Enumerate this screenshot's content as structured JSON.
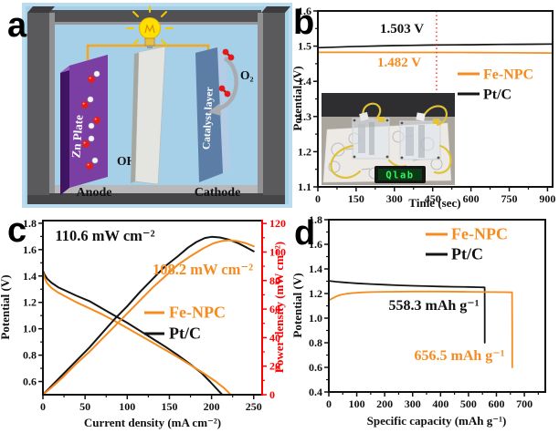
{
  "panels": {
    "a": {
      "letter": "a",
      "labels": {
        "zn_plate": "Zn Plate",
        "hydroxide": "OH⁻",
        "anode": "Anode",
        "catalyst_layer": "Catalyst layer",
        "cathode": "Cathode",
        "oxygen": "O₂"
      }
    },
    "b": {
      "letter": "b",
      "inset": {
        "display_text": "Qlab"
      }
    },
    "c": {
      "letter": "c"
    },
    "d": {
      "letter": "d"
    }
  },
  "colors": {
    "fe_npc_orange": "#F68B1F",
    "pt_c_black": "#141414",
    "right_axis_red": "#FF0000",
    "vline_red": "#FF2D2D",
    "panel_a_bg": "#A6D0E8",
    "zn_plate_purple": "#7B3FA4",
    "catalyst_blue": "#5C7EA6",
    "wire_yellow": "#F2A71F"
  },
  "chart_data": [
    {
      "id": "b",
      "type": "line",
      "xlabel": "Time (sec)",
      "ylabel": "Potential (V)",
      "xlim": [
        0,
        920
      ],
      "ylim": [
        1.1,
        1.6
      ],
      "xticks": {
        "values": [
          0,
          150,
          300,
          450,
          600,
          750,
          900
        ],
        "labels": [
          "0",
          "150",
          "300",
          "450",
          "600",
          "750",
          "900"
        ],
        "minor": [
          75,
          225,
          375,
          525,
          675,
          825
        ]
      },
      "yticks": {
        "values": [
          1.1,
          1.2,
          1.3,
          1.4,
          1.5,
          1.6
        ],
        "labels": [
          "1.1",
          "1.2",
          "1.3",
          "1.4",
          "1.5",
          "1.6"
        ],
        "minor": [
          1.15,
          1.25,
          1.35,
          1.45,
          1.55
        ]
      },
      "series": [
        {
          "name": "Pt/C",
          "color": "#141414",
          "width": 1.7,
          "points": [
            [
              0,
              1.4955
            ],
            [
              60,
              1.497
            ],
            [
              120,
              1.4985
            ],
            [
              180,
              1.4995
            ],
            [
              240,
              1.5005
            ],
            [
              300,
              1.5015
            ],
            [
              360,
              1.5022
            ],
            [
              420,
              1.5028
            ],
            [
              450,
              1.503
            ],
            [
              540,
              1.5036
            ],
            [
              600,
              1.504
            ],
            [
              660,
              1.5045
            ],
            [
              720,
              1.505
            ],
            [
              780,
              1.5052
            ],
            [
              840,
              1.5055
            ],
            [
              918,
              1.506
            ]
          ]
        },
        {
          "name": "Fe-NPC",
          "color": "#F68B1F",
          "width": 1.7,
          "points": [
            [
              0,
              1.4825
            ],
            [
              150,
              1.4824
            ],
            [
              300,
              1.4822
            ],
            [
              450,
              1.4821
            ],
            [
              600,
              1.4818
            ],
            [
              750,
              1.4813
            ],
            [
              900,
              1.4805
            ],
            [
              918,
              1.4802
            ]
          ]
        }
      ],
      "annotations": [
        {
          "text": "1.503 V",
          "color": "#111111"
        },
        {
          "text": "1.482 V",
          "color": "#F68B1F"
        }
      ],
      "vline": {
        "x": 465,
        "color": "#FF2D2D",
        "style": "dotted"
      },
      "legend": {
        "entries": [
          {
            "label": "Fe-NPC",
            "color": "#F68B1F"
          },
          {
            "label": "Pt/C",
            "color": "#141414"
          }
        ]
      }
    },
    {
      "id": "c",
      "type": "line",
      "xlabel": "Current density (mA cm⁻²)",
      "ylabel": "Potential (V)",
      "y2label": "Power density (mW cm⁻²)",
      "xlim": [
        0,
        260
      ],
      "ylim": [
        0.5,
        1.82
      ],
      "y2lim": [
        0,
        122
      ],
      "xticks": {
        "values": [
          0,
          50,
          100,
          150,
          200,
          250
        ],
        "labels": [
          "0",
          "50",
          "100",
          "150",
          "200",
          "250"
        ],
        "minor": [
          25,
          75,
          125,
          175,
          225
        ]
      },
      "yticks": {
        "values": [
          0.6,
          0.8,
          1.0,
          1.2,
          1.4,
          1.6,
          1.8
        ],
        "labels": [
          "0.6",
          "0.8",
          "1.0",
          "1.2",
          "1.4",
          "1.6",
          "1.8"
        ],
        "minor": [
          0.7,
          0.9,
          1.1,
          1.3,
          1.5,
          1.7
        ]
      },
      "y2ticks": {
        "values": [
          0,
          20,
          40,
          60,
          80,
          100,
          120
        ],
        "labels": [
          "0",
          "20",
          "40",
          "60",
          "80",
          "100",
          "120"
        ],
        "minor": [
          10,
          30,
          50,
          70,
          90,
          110
        ]
      },
      "series": [
        {
          "name": "Pt/C polarization",
          "color": "#141414",
          "width": 2,
          "points": [
            [
              0,
              1.44
            ],
            [
              2,
              1.41
            ],
            [
              5,
              1.38
            ],
            [
              10,
              1.35
            ],
            [
              18,
              1.315
            ],
            [
              28,
              1.285
            ],
            [
              40,
              1.25
            ],
            [
              55,
              1.21
            ],
            [
              70,
              1.155
            ],
            [
              85,
              1.1
            ],
            [
              100,
              1.045
            ],
            [
              115,
              0.985
            ],
            [
              130,
              0.925
            ],
            [
              145,
              0.865
            ],
            [
              160,
              0.8
            ],
            [
              175,
              0.73
            ],
            [
              188,
              0.665
            ],
            [
              198,
              0.6
            ],
            [
              206,
              0.545
            ],
            [
              212,
              0.505
            ]
          ]
        },
        {
          "name": "Fe-NPC polarization",
          "color": "#F68B1F",
          "width": 2,
          "points": [
            [
              0,
              1.43
            ],
            [
              2,
              1.385
            ],
            [
              5,
              1.345
            ],
            [
              10,
              1.31
            ],
            [
              18,
              1.275
            ],
            [
              28,
              1.24
            ],
            [
              40,
              1.2
            ],
            [
              55,
              1.155
            ],
            [
              70,
              1.11
            ],
            [
              85,
              1.06
            ],
            [
              100,
              1.005
            ],
            [
              115,
              0.95
            ],
            [
              130,
              0.895
            ],
            [
              145,
              0.84
            ],
            [
              160,
              0.785
            ],
            [
              175,
              0.725
            ],
            [
              190,
              0.665
            ],
            [
              205,
              0.6
            ],
            [
              215,
              0.55
            ],
            [
              222,
              0.505
            ]
          ]
        },
        {
          "name": "Pt/C power density",
          "color": "#141414",
          "width": 2,
          "axis": "y2",
          "points": [
            [
              0,
              0
            ],
            [
              10,
              6
            ],
            [
              25,
              15
            ],
            [
              40,
              24
            ],
            [
              55,
              33
            ],
            [
              70,
              43
            ],
            [
              85,
              53
            ],
            [
              100,
              62
            ],
            [
              115,
              72
            ],
            [
              130,
              81
            ],
            [
              145,
              90
            ],
            [
              160,
              97
            ],
            [
              172,
              103
            ],
            [
              182,
              107
            ],
            [
              192,
              109.8
            ],
            [
              200,
              110.6
            ],
            [
              210,
              110.2
            ],
            [
              220,
              108.8
            ],
            [
              232,
              106
            ],
            [
              242,
              103
            ],
            [
              250,
              100.5
            ]
          ]
        },
        {
          "name": "Fe-NPC power density",
          "color": "#F68B1F",
          "width": 2,
          "axis": "y2",
          "points": [
            [
              0,
              0
            ],
            [
              10,
              5
            ],
            [
              25,
              13
            ],
            [
              40,
              22
            ],
            [
              55,
              30
            ],
            [
              70,
              39
            ],
            [
              85,
              48
            ],
            [
              100,
              57
            ],
            [
              115,
              66
            ],
            [
              130,
              75
            ],
            [
              145,
              83
            ],
            [
              160,
              91
            ],
            [
              175,
              97
            ],
            [
              190,
              102.5
            ],
            [
              202,
              106
            ],
            [
              212,
              107.7
            ],
            [
              220,
              108.2
            ],
            [
              230,
              107.7
            ],
            [
              240,
              106.3
            ],
            [
              250,
              104
            ]
          ]
        }
      ],
      "annotations": [
        {
          "text": "110.6 mW cm⁻²",
          "color": "#111111"
        },
        {
          "text": "108.2 mW cm⁻²",
          "color": "#F68B1F"
        }
      ],
      "legend": {
        "entries": [
          {
            "label": "Fe-NPC",
            "color": "#F68B1F"
          },
          {
            "label": "Pt/C",
            "color": "#141414"
          }
        ]
      }
    },
    {
      "id": "d",
      "type": "line",
      "xlabel": "Specific capacity (mAh g⁻¹)",
      "ylabel": "Potential (V)",
      "xlim": [
        0,
        775
      ],
      "ylim": [
        0.4,
        1.8
      ],
      "xticks": {
        "values": [
          0,
          100,
          200,
          300,
          400,
          500,
          600,
          700
        ],
        "labels": [
          "0",
          "100",
          "200",
          "300",
          "400",
          "500",
          "600",
          "700"
        ],
        "minor": [
          50,
          150,
          250,
          350,
          450,
          550,
          650,
          750
        ]
      },
      "yticks": {
        "values": [
          0.4,
          0.6,
          0.8,
          1.0,
          1.2,
          1.4,
          1.6,
          1.8
        ],
        "labels": [
          "0.4",
          "0.6",
          "0.8",
          "1.0",
          "1.2",
          "1.4",
          "1.6",
          "1.8"
        ],
        "minor": [
          0.5,
          0.7,
          0.9,
          1.1,
          1.3,
          1.5,
          1.7
        ]
      },
      "series": [
        {
          "name": "Pt/C",
          "color": "#141414",
          "width": 1.8,
          "points": [
            [
              0,
              1.303
            ],
            [
              25,
              1.296
            ],
            [
              50,
              1.291
            ],
            [
              100,
              1.283
            ],
            [
              150,
              1.277
            ],
            [
              200,
              1.272
            ],
            [
              250,
              1.267
            ],
            [
              300,
              1.263
            ],
            [
              350,
              1.26
            ],
            [
              400,
              1.257
            ],
            [
              450,
              1.255
            ],
            [
              500,
              1.253
            ],
            [
              540,
              1.251
            ],
            [
              558,
              1.25
            ],
            [
              558.3,
              1.05
            ],
            [
              558.3,
              0.8
            ]
          ]
        },
        {
          "name": "Fe-NPC",
          "color": "#F68B1F",
          "width": 1.8,
          "points": [
            [
              0,
              1.145
            ],
            [
              12,
              1.16
            ],
            [
              25,
              1.175
            ],
            [
              40,
              1.188
            ],
            [
              60,
              1.197
            ],
            [
              85,
              1.204
            ],
            [
              115,
              1.209
            ],
            [
              150,
              1.212
            ],
            [
              200,
              1.214
            ],
            [
              300,
              1.216
            ],
            [
              400,
              1.216
            ],
            [
              500,
              1.214
            ],
            [
              580,
              1.212
            ],
            [
              630,
              1.211
            ],
            [
              656,
              1.21
            ],
            [
              656.5,
              0.9
            ],
            [
              656.5,
              0.6
            ]
          ]
        }
      ],
      "annotations": [
        {
          "text": "558.3 mAh g⁻¹",
          "color": "#111111"
        },
        {
          "text": "656.5 mAh g⁻¹",
          "color": "#F68B1F"
        }
      ],
      "legend": {
        "entries": [
          {
            "label": "Fe-NPC",
            "color": "#F68B1F"
          },
          {
            "label": "Pt/C",
            "color": "#141414"
          }
        ]
      }
    }
  ]
}
